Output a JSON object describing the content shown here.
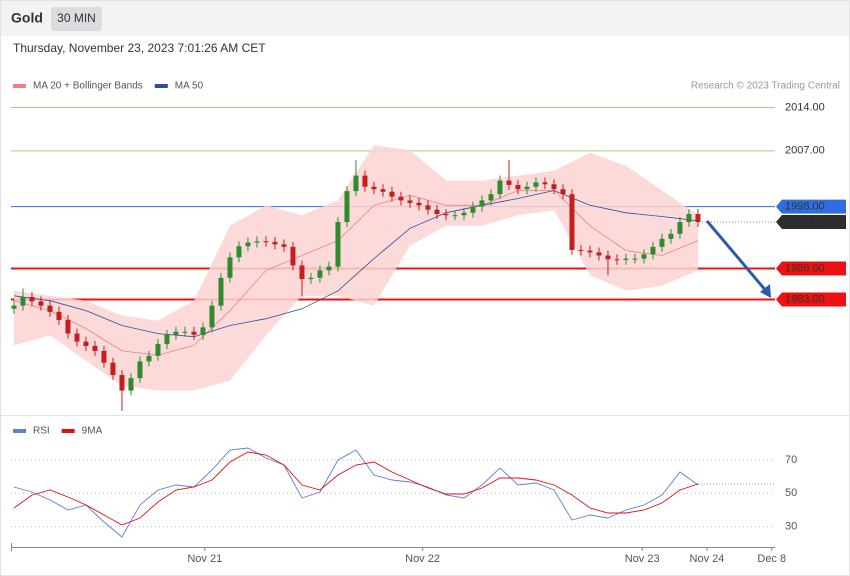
{
  "header": {
    "title": "Gold",
    "timeframe": "30 MIN",
    "timestamp": "Thursday, November 23, 2023 7:01:26 AM CET"
  },
  "chart_data": [
    {
      "type": "candlestick",
      "source": "Research © 2023 Trading Central",
      "xlim": [
        -0.33,
        84.56
      ],
      "ylim": [
        1965,
        2021.5
      ],
      "up_color": "#2e8b2e",
      "down_color": "#c41e1e",
      "open": [
        1981.5,
        1982.0,
        1983.4,
        1982.7,
        1982.0,
        1981.0,
        1979.7,
        1977.5,
        1976.2,
        1975.5,
        1974.7,
        1972.8,
        1970.8,
        1968.3,
        1970.3,
        1973.0,
        1973.9,
        1975.8,
        1977.3,
        1977.8,
        1977.8,
        1977.3,
        1978.5,
        1982.0,
        1986.5,
        1989.8,
        1991.6,
        1992.2,
        1992.4,
        1992.3,
        1991.9,
        1991.5,
        1988.5,
        1986.3,
        1986.5,
        1987.7,
        1988.3,
        1995.5,
        2000.5,
        2003.0,
        2001.2,
        2000.8,
        2000.4,
        1999.6,
        1999.0,
        1998.6,
        1998.2,
        1997.5,
        1996.8,
        1996.6,
        1996.6,
        1997.0,
        1998.0,
        1999.0,
        2000.0,
        2002.2,
        2001.5,
        2000.8,
        2001.2,
        2001.9,
        2001.6,
        2000.8,
        2000.0,
        1991.0,
        1990.9,
        1990.6,
        1990.1,
        1989.5,
        1989.4,
        1989.6,
        1989.6,
        1990.3,
        1991.5,
        1992.8,
        1993.6,
        1995.5,
        1996.8
      ],
      "high": [
        1982.8,
        1984.8,
        1984.2,
        1983.5,
        1982.8,
        1981.8,
        1980.5,
        1978.3,
        1977.0,
        1976.3,
        1975.5,
        1973.6,
        1971.6,
        1971.1,
        1973.8,
        1974.7,
        1976.6,
        1978.1,
        1978.6,
        1978.6,
        1978.6,
        1979.3,
        1982.8,
        1987.3,
        1990.6,
        1992.4,
        1993.0,
        1993.2,
        1993.2,
        1993.1,
        1992.7,
        1992.3,
        1989.3,
        1987.3,
        1988.5,
        1989.1,
        1996.3,
        2001.3,
        2005.5,
        2003.8,
        2002.0,
        2001.6,
        2001.2,
        2000.4,
        1999.8,
        1999.4,
        1999.0,
        1998.3,
        1997.6,
        1997.4,
        1997.8,
        1998.8,
        1999.8,
        2000.8,
        2003.0,
        2005.5,
        2002.3,
        2002.0,
        2002.7,
        2002.7,
        2002.4,
        2001.6,
        2000.8,
        1991.8,
        1991.7,
        1991.4,
        1990.9,
        1990.3,
        1990.4,
        1990.4,
        1991.1,
        1992.3,
        1993.6,
        1994.4,
        1996.3,
        1997.6,
        1997.6
      ],
      "low": [
        1980.7,
        1981.2,
        1981.9,
        1981.2,
        1980.2,
        1978.9,
        1976.7,
        1975.4,
        1974.7,
        1973.9,
        1972.0,
        1970.0,
        1965.0,
        1967.5,
        1969.5,
        1972.2,
        1973.1,
        1975.0,
        1976.5,
        1977.0,
        1976.5,
        1976.5,
        1977.7,
        1981.2,
        1985.7,
        1989.0,
        1990.8,
        1991.4,
        1991.5,
        1991.1,
        1990.7,
        1987.7,
        1983.5,
        1985.5,
        1985.7,
        1986.9,
        1987.5,
        1994.7,
        1999.7,
        2000.4,
        2000.0,
        1999.6,
        1998.8,
        1998.2,
        1997.8,
        1997.4,
        1996.7,
        1996.0,
        1995.8,
        1995.8,
        1995.8,
        1996.2,
        1997.2,
        1998.2,
        1999.2,
        2000.7,
        2000.0,
        2000.0,
        2000.4,
        2000.8,
        2000.0,
        1999.2,
        1990.2,
        1990.1,
        1989.8,
        1989.3,
        1986.9,
        1988.6,
        1988.6,
        1988.8,
        1988.8,
        1989.5,
        1990.7,
        1992.0,
        1992.8,
        1994.7,
        1994.7
      ],
      "close": [
        1982.0,
        1983.4,
        1982.7,
        1982.0,
        1981.0,
        1979.7,
        1977.5,
        1976.2,
        1975.5,
        1974.7,
        1972.8,
        1970.8,
        1968.3,
        1970.3,
        1973.0,
        1973.9,
        1975.8,
        1977.3,
        1977.8,
        1977.8,
        1977.3,
        1978.5,
        1982.0,
        1986.5,
        1989.8,
        1991.6,
        1992.2,
        1992.4,
        1992.3,
        1991.9,
        1991.5,
        1988.5,
        1986.3,
        1986.5,
        1987.7,
        1988.3,
        1995.5,
        2000.5,
        2003.0,
        2001.2,
        2000.8,
        2000.4,
        1999.6,
        1999.0,
        1998.6,
        1998.2,
        1997.5,
        1996.8,
        1996.6,
        1996.6,
        1997.0,
        1998.0,
        1999.0,
        2000.0,
        2002.2,
        2001.5,
        2000.8,
        2001.2,
        2001.9,
        2001.6,
        2000.8,
        2000.0,
        1991.0,
        1990.9,
        1990.6,
        1990.1,
        1989.5,
        1989.4,
        1989.6,
        1989.6,
        1990.3,
        1991.5,
        1992.8,
        1993.6,
        1995.5,
        1996.8,
        1995.5
      ],
      "indicator_x": [
        0,
        4,
        8,
        12,
        16,
        20,
        24,
        28,
        32,
        36,
        40,
        44,
        48,
        52,
        56,
        60,
        64,
        68,
        72,
        76
      ],
      "series": [
        {
          "name": "MA 20 + Bollinger Bands",
          "color": "#f08080",
          "band_color": "#fbd3d3",
          "values": [
            1982.8,
            1981.2,
            1978.3,
            1974.7,
            1974.0,
            1975.6,
            1981.2,
            1987.7,
            1990.1,
            1992.5,
            1998.2,
            1999.8,
            1998.2,
            1998.2,
            2000.6,
            2000.6,
            1994.9,
            1990.9,
            1990.1,
            1992.5
          ],
          "upper": [
            1984.4,
            1983.6,
            1982.8,
            1980.4,
            1979.6,
            1982.8,
            1994.9,
            1998.2,
            1996.6,
            1999.0,
            2007.9,
            2007.1,
            2002.2,
            2002.2,
            2003.0,
            2003.8,
            2006.7,
            2004.6,
            2000.6,
            1996.6
          ],
          "lower": [
            1975.6,
            1977.2,
            1973.1,
            1969.1,
            1968.3,
            1968.3,
            1969.9,
            1977.2,
            1983.6,
            1983.6,
            1982.0,
            1991.7,
            1994.9,
            1994.9,
            1996.6,
            1997.4,
            1986.9,
            1984.4,
            1985.2,
            1987.7
          ]
        },
        {
          "name": "MA 50",
          "color": "#2b4f9e",
          "values": [
            1983.6,
            1982.8,
            1981.2,
            1978.8,
            1977.5,
            1977.0,
            1978.8,
            1979.9,
            1981.5,
            1984.4,
            1989.6,
            1994.5,
            1997.0,
            1998.2,
            1999.3,
            2000.6,
            1998.2,
            1997.0,
            1996.4,
            1995.7
          ]
        }
      ],
      "levels": [
        {
          "value": 2014,
          "label": "2014.00",
          "color": "#a8cf78",
          "text_color": "#5a9a12",
          "label_box": false
        },
        {
          "value": 2007,
          "label": "2007.00",
          "color": "#a8cf78",
          "text_color": "#5a9a12",
          "label_box": false
        },
        {
          "value": 1998,
          "label": "1998.00",
          "color": "#2f6de0",
          "text_color": "#ffffff",
          "label_box": true
        },
        {
          "value": 1988,
          "label": "1988.00",
          "color": "#ee1111",
          "text_color": "#ffffff",
          "label_box": true
        },
        {
          "value": 1983,
          "label": "1983.00",
          "color": "#ee1111",
          "text_color": "#ffffff",
          "label_box": true
        }
      ],
      "last": {
        "value": 1995.51,
        "label": "1995.51",
        "color": "#2d2d2d"
      }
    },
    {
      "type": "line",
      "xlim": [
        -0.33,
        84.56
      ],
      "ylim": [
        19,
        94
      ],
      "yticks": [
        30,
        50,
        70
      ],
      "grid": true,
      "x": [
        0,
        2,
        4,
        6,
        8,
        10,
        12,
        14,
        16,
        18,
        20,
        22,
        24,
        26,
        28,
        30,
        32,
        34,
        36,
        38,
        40,
        42,
        44,
        46,
        48,
        50,
        52,
        54,
        56,
        58,
        60,
        62,
        64,
        66,
        68,
        70,
        72,
        74,
        76
      ],
      "xticks": [
        {
          "value": 21.2,
          "label": "Nov 21"
        },
        {
          "value": 45.4,
          "label": "Nov 22"
        },
        {
          "value": 69.8,
          "label": "Nov 23"
        },
        {
          "value": 77,
          "label": "Nov 24"
        },
        {
          "value": 84.2,
          "label": "Dec 8"
        }
      ],
      "series": [
        {
          "name": "RSI",
          "color": "#5b7fdc",
          "values": [
            53.8,
            50.8,
            46,
            40,
            43,
            32.8,
            23.8,
            43,
            52,
            55,
            53.8,
            64,
            76,
            77.2,
            71.2,
            67,
            47.2,
            50.8,
            70,
            76,
            61,
            58,
            56.8,
            53.8,
            49,
            47.2,
            55,
            65.2,
            55,
            56.2,
            52,
            34,
            37,
            35.2,
            40,
            43,
            49,
            62.8,
            55
          ]
        },
        {
          "name": "9MA",
          "color": "#e01010",
          "values": [
            41.2,
            49,
            52,
            47.8,
            43,
            37,
            31,
            35.2,
            44.8,
            52,
            53.8,
            58,
            68.8,
            74.8,
            73,
            67,
            55,
            52,
            61,
            67,
            68.8,
            62.8,
            58,
            53.2,
            49.6,
            49.6,
            53.2,
            59.2,
            59.2,
            58,
            55,
            49,
            41.2,
            38.2,
            38.2,
            40,
            44.2,
            52,
            55.6
          ]
        }
      ]
    }
  ]
}
